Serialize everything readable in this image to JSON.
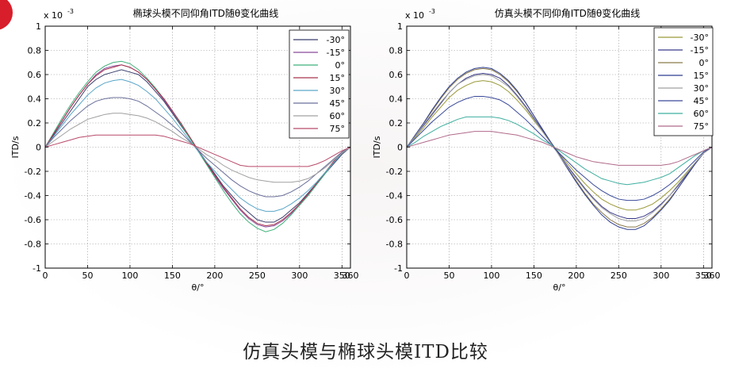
{
  "slide": {
    "caption": "仿真头模与椭球头模ITD比较"
  },
  "colors": {
    "background": "#ffffff",
    "axes": "#000000",
    "grid": "#9a9a9a",
    "brand_mark": "#d81e2a"
  },
  "chart_data": [
    {
      "type": "line",
      "title": "椭球头模不同仰角ITD随θ变化曲线",
      "xlabel": "θ/°",
      "ylabel": "ITD/s",
      "exponent_label": "x 10",
      "exponent_power": "-3",
      "xlim": [
        0,
        360
      ],
      "ylim": [
        -1,
        1
      ],
      "xticks": [
        0,
        50,
        100,
        150,
        200,
        250,
        300,
        350
      ],
      "yticks": [
        -1,
        -0.8,
        -0.6,
        -0.4,
        -0.2,
        0,
        0.2,
        0.4,
        0.6,
        0.8,
        1
      ],
      "grid": true,
      "legend_position": "top-right",
      "x": [
        0,
        10,
        20,
        30,
        40,
        50,
        60,
        70,
        80,
        90,
        100,
        110,
        120,
        130,
        140,
        150,
        160,
        170,
        180,
        190,
        200,
        210,
        220,
        230,
        240,
        250,
        260,
        270,
        280,
        290,
        300,
        310,
        320,
        330,
        340,
        350,
        360
      ],
      "series": [
        {
          "name": "-30°",
          "color": "#3a3f6e",
          "values": [
            0,
            0.1,
            0.2,
            0.3,
            0.4,
            0.5,
            0.56,
            0.6,
            0.62,
            0.64,
            0.62,
            0.6,
            0.54,
            0.46,
            0.38,
            0.28,
            0.18,
            0.08,
            -0.02,
            -0.12,
            -0.22,
            -0.32,
            -0.4,
            -0.48,
            -0.54,
            -0.6,
            -0.62,
            -0.62,
            -0.58,
            -0.52,
            -0.46,
            -0.38,
            -0.3,
            -0.22,
            -0.14,
            -0.06,
            0
          ]
        },
        {
          "name": "-15°",
          "color": "#8a4a9a",
          "values": [
            0,
            0.11,
            0.22,
            0.33,
            0.43,
            0.52,
            0.6,
            0.65,
            0.67,
            0.68,
            0.66,
            0.62,
            0.56,
            0.48,
            0.39,
            0.29,
            0.19,
            0.08,
            -0.02,
            -0.13,
            -0.24,
            -0.34,
            -0.43,
            -0.52,
            -0.59,
            -0.64,
            -0.66,
            -0.65,
            -0.61,
            -0.55,
            -0.48,
            -0.4,
            -0.31,
            -0.22,
            -0.13,
            -0.05,
            0
          ]
        },
        {
          "name": "0°",
          "color": "#3fb07a",
          "values": [
            0,
            0.12,
            0.24,
            0.35,
            0.45,
            0.54,
            0.62,
            0.67,
            0.7,
            0.71,
            0.69,
            0.64,
            0.57,
            0.49,
            0.4,
            0.3,
            0.19,
            0.08,
            -0.03,
            -0.14,
            -0.25,
            -0.36,
            -0.46,
            -0.55,
            -0.62,
            -0.67,
            -0.7,
            -0.68,
            -0.63,
            -0.56,
            -0.48,
            -0.4,
            -0.31,
            -0.22,
            -0.13,
            -0.05,
            0
          ]
        },
        {
          "name": "15°",
          "color": "#a8344e",
          "values": [
            0,
            0.11,
            0.22,
            0.33,
            0.43,
            0.52,
            0.59,
            0.64,
            0.66,
            0.68,
            0.66,
            0.62,
            0.56,
            0.48,
            0.4,
            0.3,
            0.2,
            0.09,
            -0.02,
            -0.13,
            -0.23,
            -0.33,
            -0.42,
            -0.51,
            -0.58,
            -0.63,
            -0.65,
            -0.64,
            -0.6,
            -0.54,
            -0.47,
            -0.39,
            -0.3,
            -0.21,
            -0.12,
            -0.04,
            0
          ]
        },
        {
          "name": "30°",
          "color": "#5aa6c8",
          "values": [
            0,
            0.09,
            0.18,
            0.27,
            0.35,
            0.43,
            0.49,
            0.53,
            0.55,
            0.56,
            0.54,
            0.51,
            0.46,
            0.4,
            0.32,
            0.24,
            0.15,
            0.06,
            -0.03,
            -0.12,
            -0.2,
            -0.28,
            -0.35,
            -0.42,
            -0.47,
            -0.51,
            -0.53,
            -0.53,
            -0.51,
            -0.47,
            -0.42,
            -0.36,
            -0.29,
            -0.21,
            -0.13,
            -0.05,
            0
          ]
        },
        {
          "name": "45°",
          "color": "#6a6f9a",
          "values": [
            0,
            0.08,
            0.15,
            0.22,
            0.28,
            0.34,
            0.38,
            0.4,
            0.41,
            0.41,
            0.4,
            0.38,
            0.34,
            0.29,
            0.24,
            0.18,
            0.12,
            0.05,
            -0.02,
            -0.09,
            -0.15,
            -0.21,
            -0.27,
            -0.32,
            -0.36,
            -0.39,
            -0.41,
            -0.41,
            -0.4,
            -0.37,
            -0.33,
            -0.28,
            -0.22,
            -0.16,
            -0.1,
            -0.04,
            0
          ]
        },
        {
          "name": "60°",
          "color": "#a0a0a0",
          "values": [
            0,
            0.05,
            0.1,
            0.15,
            0.19,
            0.23,
            0.25,
            0.27,
            0.28,
            0.28,
            0.27,
            0.26,
            0.24,
            0.21,
            0.17,
            0.13,
            0.08,
            0.04,
            -0.01,
            -0.06,
            -0.1,
            -0.15,
            -0.19,
            -0.22,
            -0.25,
            -0.27,
            -0.28,
            -0.29,
            -0.29,
            -0.29,
            -0.28,
            -0.26,
            -0.22,
            -0.17,
            -0.11,
            -0.05,
            0
          ]
        },
        {
          "name": "75°",
          "color": "#b84a6a",
          "values": [
            0,
            0.02,
            0.04,
            0.06,
            0.08,
            0.09,
            0.1,
            0.1,
            0.1,
            0.1,
            0.1,
            0.1,
            0.1,
            0.1,
            0.09,
            0.07,
            0.05,
            0.03,
            0,
            -0.03,
            -0.06,
            -0.09,
            -0.12,
            -0.15,
            -0.16,
            -0.16,
            -0.16,
            -0.16,
            -0.16,
            -0.16,
            -0.16,
            -0.16,
            -0.14,
            -0.11,
            -0.07,
            -0.03,
            0
          ]
        }
      ]
    },
    {
      "type": "line",
      "title": "仿真头模不同仰角ITD随θ变化曲线",
      "xlabel": "θ/°",
      "ylabel": "ITD/s",
      "exponent_label": "x 10",
      "exponent_power": "-3",
      "xlim": [
        0,
        360
      ],
      "ylim": [
        -1,
        1
      ],
      "xticks": [
        0,
        50,
        100,
        150,
        200,
        250,
        300,
        350
      ],
      "yticks": [
        -1,
        -0.8,
        -0.6,
        -0.4,
        -0.2,
        0,
        0.2,
        0.4,
        0.6,
        0.8,
        1
      ],
      "grid": true,
      "legend_position": "top-right",
      "x": [
        0,
        10,
        20,
        30,
        40,
        50,
        60,
        70,
        80,
        90,
        100,
        110,
        120,
        130,
        140,
        150,
        160,
        170,
        180,
        190,
        200,
        210,
        220,
        230,
        240,
        250,
        260,
        270,
        280,
        290,
        300,
        310,
        320,
        330,
        340,
        350,
        360
      ],
      "series": [
        {
          "name": "-30°",
          "color": "#9a9a3a",
          "values": [
            0,
            0.08,
            0.16,
            0.25,
            0.33,
            0.41,
            0.47,
            0.51,
            0.54,
            0.55,
            0.54,
            0.51,
            0.46,
            0.39,
            0.31,
            0.22,
            0.13,
            0.04,
            -0.05,
            -0.14,
            -0.22,
            -0.3,
            -0.37,
            -0.43,
            -0.47,
            -0.5,
            -0.52,
            -0.52,
            -0.5,
            -0.47,
            -0.42,
            -0.36,
            -0.29,
            -0.21,
            -0.13,
            -0.05,
            0
          ]
        },
        {
          "name": "-15°",
          "color": "#3a3a8a",
          "values": [
            0,
            0.09,
            0.18,
            0.27,
            0.36,
            0.45,
            0.52,
            0.57,
            0.6,
            0.61,
            0.6,
            0.57,
            0.51,
            0.43,
            0.34,
            0.24,
            0.14,
            0.04,
            -0.06,
            -0.16,
            -0.25,
            -0.34,
            -0.42,
            -0.49,
            -0.54,
            -0.57,
            -0.59,
            -0.59,
            -0.57,
            -0.53,
            -0.47,
            -0.4,
            -0.32,
            -0.23,
            -0.14,
            -0.05,
            0
          ]
        },
        {
          "name": "0°",
          "color": "#8a7a4a",
          "values": [
            0,
            0.1,
            0.2,
            0.3,
            0.4,
            0.49,
            0.56,
            0.61,
            0.64,
            0.65,
            0.64,
            0.6,
            0.54,
            0.46,
            0.37,
            0.26,
            0.15,
            0.04,
            -0.07,
            -0.18,
            -0.28,
            -0.38,
            -0.47,
            -0.54,
            -0.6,
            -0.64,
            -0.66,
            -0.66,
            -0.63,
            -0.58,
            -0.51,
            -0.43,
            -0.34,
            -0.24,
            -0.14,
            -0.05,
            0
          ]
        },
        {
          "name": "15°",
          "color": "#2f3f8f",
          "values": [
            0,
            0.1,
            0.2,
            0.31,
            0.41,
            0.5,
            0.57,
            0.62,
            0.65,
            0.66,
            0.65,
            0.61,
            0.55,
            0.47,
            0.37,
            0.26,
            0.15,
            0.04,
            -0.07,
            -0.18,
            -0.29,
            -0.39,
            -0.48,
            -0.56,
            -0.62,
            -0.66,
            -0.68,
            -0.68,
            -0.65,
            -0.59,
            -0.52,
            -0.44,
            -0.34,
            -0.24,
            -0.14,
            -0.05,
            0
          ]
        },
        {
          "name": "30°",
          "color": "#a0a0a0",
          "values": [
            0,
            0.09,
            0.19,
            0.28,
            0.37,
            0.45,
            0.52,
            0.56,
            0.59,
            0.6,
            0.59,
            0.55,
            0.5,
            0.42,
            0.33,
            0.23,
            0.13,
            0.03,
            -0.07,
            -0.17,
            -0.26,
            -0.35,
            -0.43,
            -0.5,
            -0.55,
            -0.59,
            -0.61,
            -0.61,
            -0.59,
            -0.54,
            -0.48,
            -0.4,
            -0.31,
            -0.22,
            -0.13,
            -0.05,
            0
          ]
        },
        {
          "name": "45°",
          "color": "#3a4a9a",
          "values": [
            0,
            0.07,
            0.14,
            0.21,
            0.27,
            0.33,
            0.37,
            0.4,
            0.42,
            0.42,
            0.41,
            0.39,
            0.35,
            0.29,
            0.23,
            0.16,
            0.09,
            0.02,
            -0.05,
            -0.12,
            -0.19,
            -0.25,
            -0.31,
            -0.36,
            -0.4,
            -0.43,
            -0.44,
            -0.44,
            -0.43,
            -0.4,
            -0.36,
            -0.31,
            -0.25,
            -0.18,
            -0.11,
            -0.04,
            0
          ]
        },
        {
          "name": "60°",
          "color": "#3faf9f",
          "values": [
            0,
            0.04,
            0.09,
            0.13,
            0.17,
            0.2,
            0.23,
            0.25,
            0.25,
            0.25,
            0.25,
            0.24,
            0.22,
            0.19,
            0.15,
            0.11,
            0.06,
            0.02,
            -0.03,
            -0.08,
            -0.13,
            -0.18,
            -0.22,
            -0.26,
            -0.28,
            -0.3,
            -0.31,
            -0.3,
            -0.29,
            -0.27,
            -0.25,
            -0.22,
            -0.17,
            -0.12,
            -0.07,
            -0.03,
            0
          ]
        },
        {
          "name": "75°",
          "color": "#b06a8a",
          "values": [
            0,
            0.02,
            0.04,
            0.06,
            0.08,
            0.1,
            0.11,
            0.12,
            0.13,
            0.13,
            0.13,
            0.12,
            0.11,
            0.1,
            0.08,
            0.06,
            0.04,
            0.01,
            -0.02,
            -0.05,
            -0.08,
            -0.1,
            -0.12,
            -0.13,
            -0.14,
            -0.15,
            -0.15,
            -0.15,
            -0.15,
            -0.15,
            -0.15,
            -0.14,
            -0.12,
            -0.09,
            -0.06,
            -0.03,
            0
          ]
        }
      ]
    }
  ]
}
